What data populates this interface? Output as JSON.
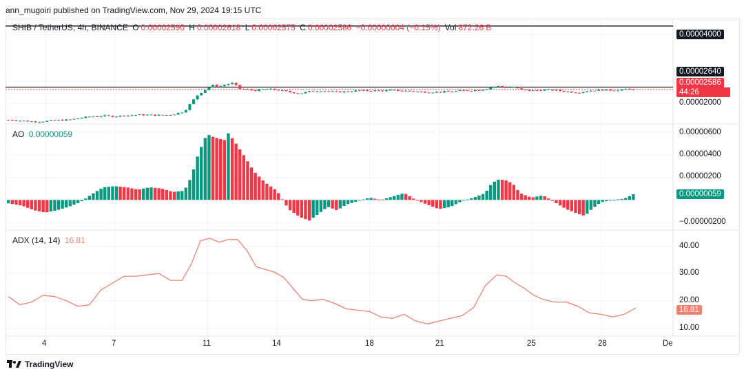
{
  "header": {
    "publish_text": "ann_mugoiri published on TradingView.com, Nov 29, 2024 19:15 UTC"
  },
  "legend": {
    "symbol": "SHIB / TetherUS, 4h, BINANCE",
    "o_label": "O",
    "o_value": "0.00002590",
    "h_label": "H",
    "h_value": "0.00002618",
    "l_label": "L",
    "l_value": "0.00002575",
    "c_label": "C",
    "c_value": "0.00002586",
    "change": "−0.00000004 (−0.15%)",
    "vol_label": "Vol",
    "vol_value": "872.26 B"
  },
  "ao": {
    "label": "AO",
    "value": "0.00000059"
  },
  "adx": {
    "label": "ADX (14, 14)",
    "value": "16.81"
  },
  "price_axis": {
    "level_4000": "0.00004000",
    "level_2640": "0.00002640",
    "current_price": "0.00002586",
    "countdown": "44:26",
    "level_2000": "0.00002000"
  },
  "ao_axis": [
    "0.00000600",
    "0.00000400",
    "0.00000200",
    "0.00000059",
    "−0.00000200"
  ],
  "adx_axis": [
    "40.00",
    "30.00",
    "20.00",
    "16.81",
    "10.00"
  ],
  "time_axis": [
    "4",
    "7",
    "11",
    "14",
    "18",
    "21",
    "25",
    "28",
    "De"
  ],
  "colors": {
    "up": "#089981",
    "down": "#f23645",
    "adx_line": "#f08070",
    "dark": "#131722"
  },
  "footer": {
    "brand": "TradingView"
  },
  "chart_data": [
    {
      "type": "candlestick",
      "title": "SHIB / TetherUS, 4h, BINANCE",
      "ylim": [
        1.85e-05,
        4.15e-05
      ],
      "horizontal_lines": [
        4e-05,
        2.64e-05
      ],
      "current_price": 2.586e-05,
      "close_path_x_day": [
        2.4,
        3.0,
        3.5,
        4.0,
        4.5,
        5.0,
        5.5,
        6.0,
        6.5,
        7.0,
        7.5,
        8.0,
        8.5,
        9.0,
        9.5,
        10.0,
        10.3,
        10.6,
        10.9,
        11.2,
        11.5,
        11.8,
        12.1,
        12.4,
        12.7,
        13.0,
        13.5,
        14.0,
        14.5,
        15.0,
        15.5,
        16.0,
        16.5,
        17.0,
        17.5,
        18.0,
        18.5,
        19.0,
        19.5,
        20.0,
        20.5,
        21.0,
        21.5,
        22.0,
        22.5,
        23.0,
        23.3,
        23.6,
        23.9,
        24.2,
        24.5,
        25.0,
        25.5,
        26.0,
        26.5,
        27.0,
        27.5,
        28.0,
        28.5,
        29.0,
        29.5
      ],
      "close_path_price": [
        1.91e-05,
        1.89e-05,
        1.87e-05,
        1.88e-05,
        1.9e-05,
        1.91e-05,
        1.95e-05,
        1.99e-05,
        2e-05,
        1.99e-05,
        2.01e-05,
        2.02e-05,
        2.02e-05,
        2.01e-05,
        2.03e-05,
        2.1e-05,
        2.3e-05,
        2.48e-05,
        2.58e-05,
        2.68e-05,
        2.65e-05,
        2.7e-05,
        2.73e-05,
        2.6e-05,
        2.59e-05,
        2.56e-05,
        2.6e-05,
        2.58e-05,
        2.53e-05,
        2.5e-05,
        2.55e-05,
        2.56e-05,
        2.53e-05,
        2.54e-05,
        2.56e-05,
        2.56e-05,
        2.56e-05,
        2.57e-05,
        2.56e-05,
        2.54e-05,
        2.53e-05,
        2.53e-05,
        2.54e-05,
        2.56e-05,
        2.57e-05,
        2.59e-05,
        2.64e-05,
        2.66e-05,
        2.63e-05,
        2.65e-05,
        2.58e-05,
        2.56e-05,
        2.58e-05,
        2.57e-05,
        2.54e-05,
        2.52e-05,
        2.56e-05,
        2.58e-05,
        2.57e-05,
        2.59e-05,
        2.586e-05
      ]
    },
    {
      "type": "histogram",
      "title": "AO",
      "current_value": 5.9e-07,
      "ylim": [
        -2.5e-06,
        6.5e-06
      ],
      "x_day": [
        2.4,
        3.0,
        3.5,
        4.0,
        4.5,
        5.0,
        5.5,
        6.0,
        6.5,
        7.0,
        7.5,
        8.0,
        8.5,
        9.0,
        9.5,
        10.0,
        10.3,
        10.6,
        10.9,
        11.1,
        11.3,
        11.5,
        11.7,
        11.9,
        12.1,
        12.3,
        12.6,
        13.0,
        13.5,
        14.0,
        14.5,
        15.0,
        15.4,
        15.8,
        16.2,
        16.6,
        17.0,
        17.5,
        18.0,
        18.5,
        19.0,
        19.5,
        20.0,
        20.5,
        21.0,
        21.5,
        22.0,
        22.5,
        23.0,
        23.3,
        23.6,
        23.9,
        24.2,
        24.5,
        25.0,
        25.5,
        26.0,
        26.5,
        27.0,
        27.3,
        27.6,
        28.0,
        28.5,
        29.0,
        29.5
      ],
      "values": [
        -3e-07,
        -5e-07,
        -9e-07,
        -1.1e-06,
        -9e-07,
        -6e-07,
        -2e-07,
        5e-07,
        1.1e-06,
        1.2e-06,
        1.1e-06,
        9e-07,
        1.1e-06,
        1e-06,
        7e-07,
        8e-07,
        2e-06,
        4e-06,
        5.4e-06,
        5.7e-06,
        5.4e-06,
        5.4e-06,
        5.1e-06,
        5.8e-06,
        5.3e-06,
        4.7e-06,
        3.8e-06,
        2.5e-06,
        1.5e-06,
        8e-07,
        -8e-07,
        -1.5e-06,
        -1.8e-06,
        -1.2e-06,
        -6e-07,
        -9e-07,
        -4e-07,
        -1e-07,
        2e-07,
        0.0,
        3e-07,
        6e-07,
        0.0,
        -4e-07,
        -8e-07,
        -6e-07,
        -1e-07,
        2e-07,
        6e-07,
        1.5e-06,
        1.8e-06,
        1.7e-06,
        1.4e-06,
        6e-07,
        2e-07,
        4e-07,
        -2e-07,
        -8e-07,
        -1.2e-06,
        -1.4e-06,
        -8e-07,
        -2e-07,
        0.0,
        1e-07,
        5.9e-07
      ]
    },
    {
      "type": "line",
      "title": "ADX (14, 14)",
      "current_value": 16.81,
      "ylim": [
        7,
        45
      ],
      "x_day": [
        2.4,
        2.9,
        3.4,
        3.9,
        4.4,
        4.9,
        5.4,
        5.9,
        6.4,
        6.9,
        7.4,
        7.9,
        8.4,
        8.9,
        9.4,
        9.9,
        10.3,
        10.7,
        11.1,
        11.5,
        11.9,
        12.3,
        12.7,
        13.1,
        13.5,
        13.9,
        14.3,
        14.7,
        15.1,
        15.5,
        16.0,
        16.5,
        17.0,
        17.5,
        18.0,
        18.5,
        19.0,
        19.5,
        20.0,
        20.5,
        21.0,
        21.5,
        22.0,
        22.5,
        23.0,
        23.5,
        23.9,
        24.3,
        24.7,
        25.1,
        25.5,
        26.0,
        26.5,
        27.0,
        27.5,
        28.0,
        28.5,
        29.0,
        29.5
      ],
      "values": [
        21,
        18,
        19,
        21.5,
        21,
        19.5,
        17.5,
        18,
        23.5,
        26,
        28.5,
        28.5,
        29,
        29.5,
        27,
        27,
        33,
        41.5,
        42.5,
        41,
        42,
        42,
        38,
        32,
        31,
        30,
        28,
        24,
        20,
        19.5,
        20,
        18.5,
        16.5,
        16,
        15.5,
        13.5,
        13,
        14.5,
        12,
        11,
        12,
        13,
        14,
        17,
        25,
        29,
        28.5,
        26,
        24,
        21.5,
        20,
        19,
        19,
        17.5,
        15,
        14.5,
        13.5,
        14.5,
        16.81
      ]
    }
  ]
}
